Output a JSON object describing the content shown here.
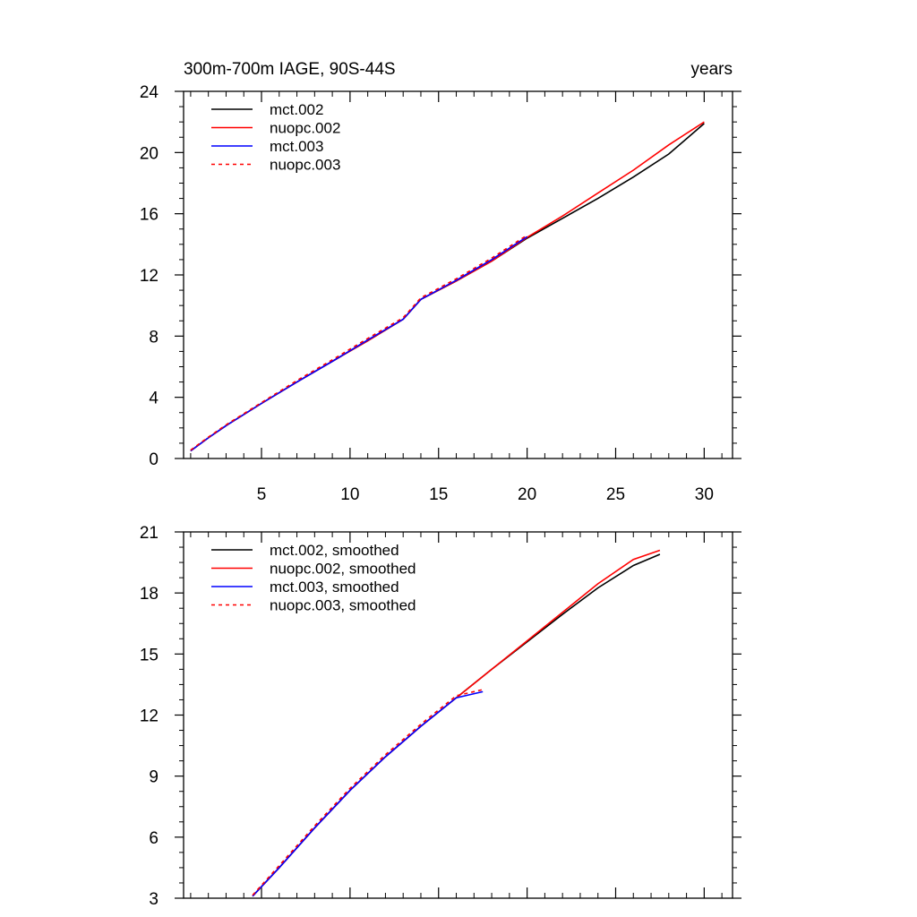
{
  "chart_data": [
    {
      "type": "line",
      "title": "300m-700m IAGE, 90S-44S",
      "title_right": "years",
      "xlabel": "",
      "ylabel": "",
      "xlim": [
        0.6,
        31.6
      ],
      "ylim": [
        0,
        24
      ],
      "xticks": [
        5,
        10,
        15,
        20,
        25,
        30
      ],
      "yticks": [
        0,
        4,
        8,
        12,
        16,
        20,
        24
      ],
      "xtick_labels_shown": true,
      "legend_position": "top-left",
      "grid": false,
      "series": [
        {
          "name": "mct.002",
          "color": "#000000",
          "dash": "solid",
          "x": [
            1,
            2,
            3,
            5,
            7,
            9,
            11,
            13,
            14,
            16,
            18,
            20,
            22,
            24,
            26,
            28,
            30
          ],
          "y": [
            0.5,
            1.35,
            2.15,
            3.6,
            5.0,
            6.35,
            7.7,
            9.1,
            10.4,
            11.6,
            12.9,
            14.4,
            15.7,
            17.0,
            18.4,
            19.9,
            21.9
          ]
        },
        {
          "name": "nuopc.002",
          "color": "#ff0000",
          "dash": "solid",
          "x": [
            1,
            2,
            3,
            5,
            7,
            9,
            11,
            13,
            14,
            16,
            18,
            20,
            22,
            24,
            26,
            28,
            30
          ],
          "y": [
            0.5,
            1.35,
            2.15,
            3.6,
            5.0,
            6.35,
            7.7,
            9.1,
            10.4,
            11.6,
            12.9,
            14.45,
            15.85,
            17.35,
            18.85,
            20.5,
            22.0
          ]
        },
        {
          "name": "mct.003",
          "color": "#0000ff",
          "dash": "solid",
          "x": [
            1,
            2,
            3,
            5,
            7,
            9,
            11,
            13,
            14,
            16,
            18,
            20
          ],
          "y": [
            0.5,
            1.35,
            2.15,
            3.6,
            5.0,
            6.35,
            7.75,
            9.1,
            10.4,
            11.65,
            13.0,
            14.5
          ]
        },
        {
          "name": "nuopc.003",
          "color": "#ff0000",
          "dash": "dashed",
          "x": [
            1,
            2,
            3,
            5,
            7,
            9,
            11,
            13,
            14,
            16,
            18,
            20
          ],
          "y": [
            0.55,
            1.4,
            2.2,
            3.65,
            5.1,
            6.45,
            7.85,
            9.2,
            10.5,
            11.75,
            13.1,
            14.6
          ]
        }
      ]
    },
    {
      "type": "line",
      "title": "",
      "xlabel": "",
      "ylabel": "",
      "xlim": [
        0.6,
        31.6
      ],
      "ylim": [
        3,
        21
      ],
      "xticks": [
        5,
        10,
        15,
        20,
        25,
        30
      ],
      "yticks": [
        3,
        6,
        9,
        12,
        15,
        18,
        21
      ],
      "xtick_labels_shown": false,
      "legend_position": "top-left",
      "grid": false,
      "series": [
        {
          "name": "mct.002, smoothed",
          "color": "#000000",
          "dash": "solid",
          "x": [
            4.5,
            6,
            8,
            10,
            12,
            14,
            16,
            18,
            20,
            22,
            24,
            26,
            27.5
          ],
          "y": [
            3.1,
            4.5,
            6.45,
            8.3,
            9.95,
            11.45,
            12.85,
            14.25,
            15.6,
            16.95,
            18.25,
            19.35,
            19.9
          ]
        },
        {
          "name": "nuopc.002, smoothed",
          "color": "#ff0000",
          "dash": "solid",
          "x": [
            4.5,
            6,
            8,
            10,
            12,
            14,
            16,
            18,
            20,
            22,
            24,
            26,
            27.5
          ],
          "y": [
            3.1,
            4.5,
            6.45,
            8.3,
            9.95,
            11.45,
            12.85,
            14.25,
            15.65,
            17.05,
            18.45,
            19.65,
            20.1
          ]
        },
        {
          "name": "mct.003, smoothed",
          "color": "#0000ff",
          "dash": "solid",
          "x": [
            4.5,
            6,
            8,
            10,
            12,
            14,
            16,
            17.5
          ],
          "y": [
            3.1,
            4.5,
            6.45,
            8.3,
            9.95,
            11.45,
            12.85,
            13.15
          ]
        },
        {
          "name": "nuopc.003, smoothed",
          "color": "#ff0000",
          "dash": "dashed",
          "x": [
            4.5,
            6,
            8,
            10,
            12,
            14,
            16,
            17.5
          ],
          "y": [
            3.15,
            4.6,
            6.55,
            8.4,
            10.05,
            11.55,
            12.95,
            13.25
          ]
        }
      ]
    }
  ]
}
